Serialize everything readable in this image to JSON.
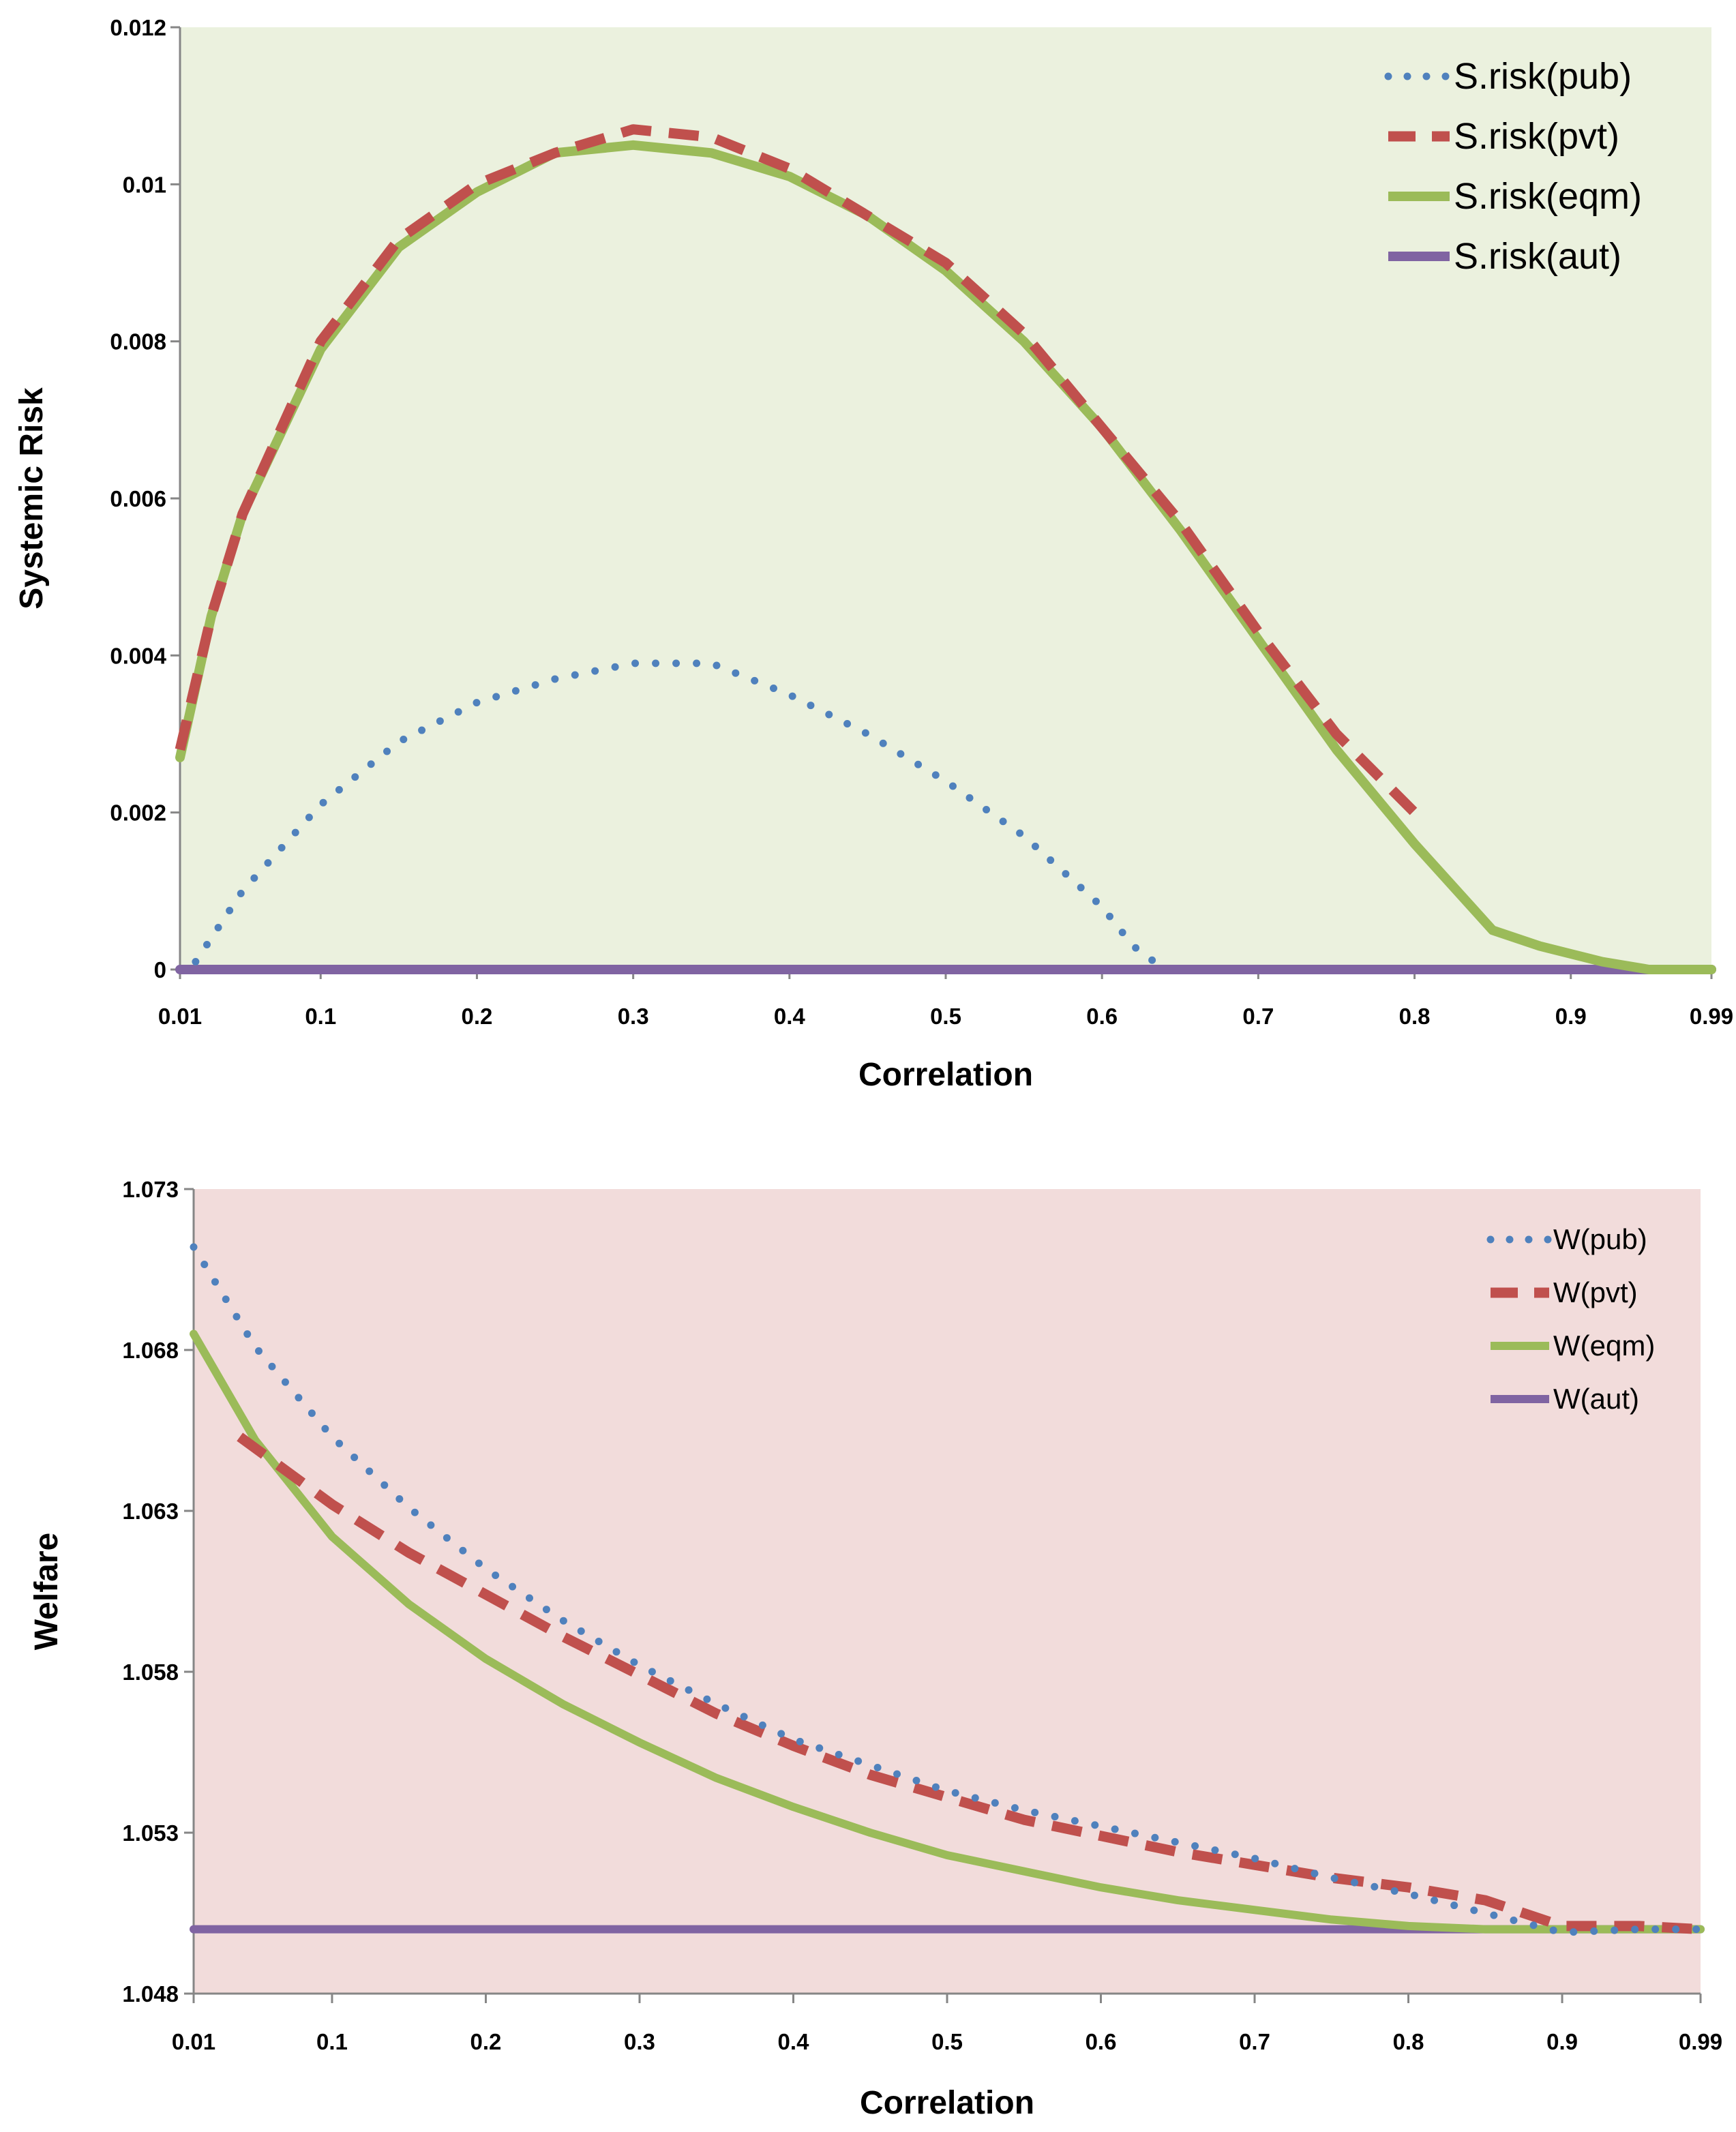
{
  "chart_data": [
    {
      "type": "line",
      "title": "",
      "xlabel": "Correlation",
      "ylabel": "Systemic Risk",
      "background": "#ebf1de",
      "xlim": [
        0.01,
        0.99
      ],
      "ylim": [
        0,
        0.012
      ],
      "x_ticks": [
        "0.01",
        "0.1",
        "0.2",
        "0.3",
        "0.4",
        "0.5",
        "0.6",
        "0.7",
        "0.8",
        "0.9",
        "0.99"
      ],
      "y_ticks": [
        "0",
        "0.002",
        "0.004",
        "0.006",
        "0.008",
        "0.01",
        "0.012"
      ],
      "legend_position": "top-right",
      "grid": false,
      "series": [
        {
          "name": "S.risk(pub)",
          "style": "dotted",
          "color": "#4f81bd",
          "x": [
            0.02,
            0.05,
            0.1,
            0.15,
            0.2,
            0.25,
            0.3,
            0.35,
            0.4,
            0.45,
            0.5,
            0.55,
            0.6,
            0.62,
            0.64
          ],
          "y": [
            0.0001,
            0.001,
            0.0021,
            0.0029,
            0.0034,
            0.0037,
            0.0039,
            0.0039,
            0.0035,
            0.003,
            0.0024,
            0.0017,
            0.0008,
            0.0003,
            0.0
          ]
        },
        {
          "name": "S.risk(pvt)",
          "style": "dashed",
          "color": "#c0504d",
          "x": [
            0.01,
            0.03,
            0.05,
            0.1,
            0.15,
            0.2,
            0.25,
            0.3,
            0.35,
            0.4,
            0.45,
            0.5,
            0.55,
            0.6,
            0.65,
            0.7,
            0.75,
            0.8
          ],
          "y": [
            0.0028,
            0.0045,
            0.0058,
            0.008,
            0.0093,
            0.01,
            0.0104,
            0.0107,
            0.0106,
            0.0102,
            0.0096,
            0.009,
            0.0081,
            0.0069,
            0.0057,
            0.0043,
            0.003,
            0.002
          ]
        },
        {
          "name": "S.risk(eqm)",
          "style": "solid",
          "color": "#9bbb59",
          "x": [
            0.01,
            0.03,
            0.05,
            0.1,
            0.15,
            0.2,
            0.25,
            0.3,
            0.35,
            0.4,
            0.45,
            0.5,
            0.55,
            0.6,
            0.65,
            0.7,
            0.75,
            0.8,
            0.85,
            0.88,
            0.9,
            0.92,
            0.95,
            0.99
          ],
          "y": [
            0.0027,
            0.0045,
            0.0058,
            0.0079,
            0.0092,
            0.0099,
            0.0104,
            0.0105,
            0.0104,
            0.0101,
            0.0096,
            0.0089,
            0.008,
            0.0069,
            0.0056,
            0.0042,
            0.0028,
            0.0016,
            0.0005,
            0.0003,
            0.0002,
            0.0001,
            0.0,
            0.0
          ]
        },
        {
          "name": "S.risk(aut)",
          "style": "solid",
          "color": "#8064a2",
          "x": [
            0.01,
            0.99
          ],
          "y": [
            0.0,
            0.0
          ]
        }
      ]
    },
    {
      "type": "line",
      "title": "",
      "xlabel": "Correlation",
      "ylabel": "Welfare",
      "background": "#f2dcdb",
      "xlim": [
        0.01,
        0.99
      ],
      "ylim": [
        1.048,
        1.073
      ],
      "x_ticks": [
        "0.01",
        "0.1",
        "0.2",
        "0.3",
        "0.4",
        "0.5",
        "0.6",
        "0.7",
        "0.8",
        "0.9",
        "0.99"
      ],
      "y_ticks": [
        "1.048",
        "1.053",
        "1.058",
        "1.063",
        "1.068",
        "1.073"
      ],
      "legend_position": "top-right",
      "grid": false,
      "series": [
        {
          "name": "W(pub)",
          "style": "dotted",
          "color": "#4f81bd",
          "x": [
            0.01,
            0.05,
            0.1,
            0.15,
            0.2,
            0.25,
            0.3,
            0.35,
            0.4,
            0.45,
            0.5,
            0.55,
            0.6,
            0.65,
            0.7,
            0.75,
            0.8,
            0.85,
            0.9,
            0.95,
            0.99
          ],
          "y": [
            1.0712,
            1.0681,
            1.0653,
            1.0631,
            1.0612,
            1.0596,
            1.0582,
            1.057,
            1.0559,
            1.0551,
            1.0543,
            1.0537,
            1.0532,
            1.0527,
            1.0522,
            1.0516,
            1.0511,
            1.0505,
            1.0499,
            1.05,
            1.05
          ]
        },
        {
          "name": "W(pvt)",
          "style": "dashed",
          "color": "#c0504d",
          "x": [
            0.04,
            0.1,
            0.15,
            0.2,
            0.25,
            0.3,
            0.35,
            0.4,
            0.45,
            0.5,
            0.55,
            0.6,
            0.65,
            0.7,
            0.75,
            0.8,
            0.85,
            0.9,
            0.95,
            0.99
          ],
          "y": [
            1.0653,
            1.0632,
            1.0617,
            1.0604,
            1.0591,
            1.0579,
            1.0567,
            1.0557,
            1.0548,
            1.0541,
            1.0534,
            1.0529,
            1.0524,
            1.052,
            1.0516,
            1.0513,
            1.0509,
            1.0501,
            1.0501,
            1.05
          ]
        },
        {
          "name": "W(eqm)",
          "style": "solid",
          "color": "#9bbb59",
          "x": [
            0.01,
            0.05,
            0.1,
            0.15,
            0.2,
            0.25,
            0.3,
            0.35,
            0.4,
            0.45,
            0.5,
            0.55,
            0.6,
            0.65,
            0.7,
            0.75,
            0.8,
            0.85,
            0.9,
            0.99
          ],
          "y": [
            1.0685,
            1.0652,
            1.0622,
            1.0601,
            1.0584,
            1.057,
            1.0558,
            1.0547,
            1.0538,
            1.053,
            1.0523,
            1.0518,
            1.0513,
            1.0509,
            1.0506,
            1.0503,
            1.0501,
            1.05,
            1.05,
            1.05
          ]
        },
        {
          "name": "W(aut)",
          "style": "solid",
          "color": "#8064a2",
          "x": [
            0.01,
            0.99
          ],
          "y": [
            1.05,
            1.05
          ]
        }
      ]
    }
  ]
}
